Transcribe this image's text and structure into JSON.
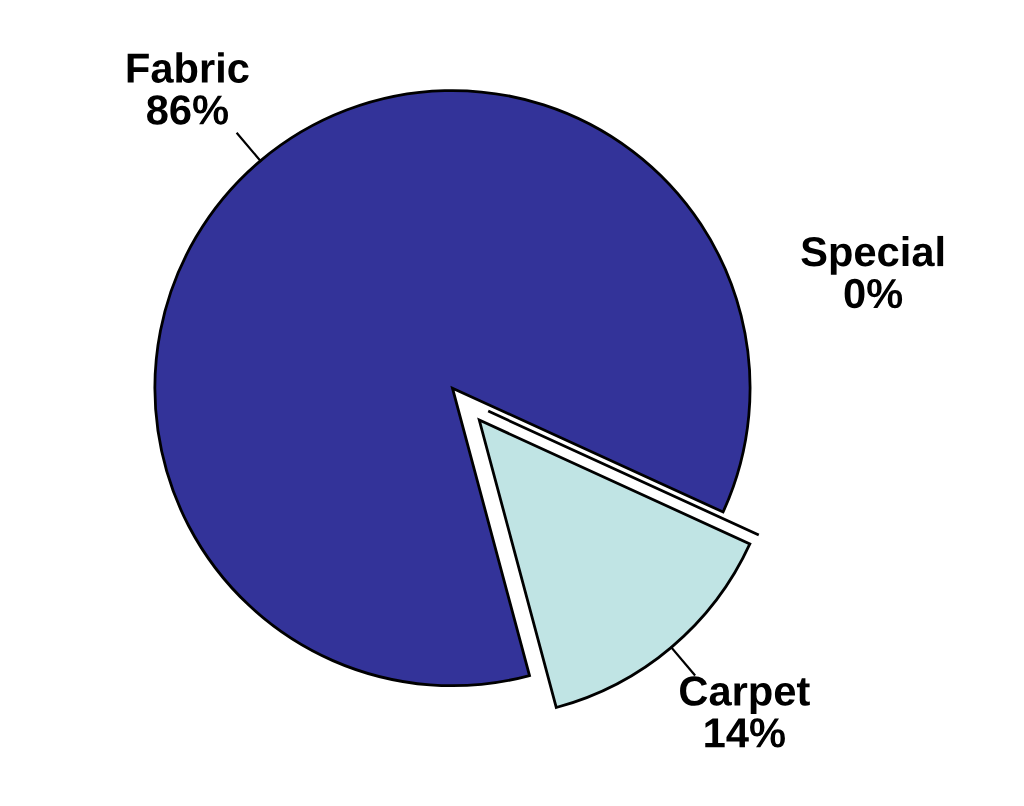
{
  "chart_data": {
    "type": "pie",
    "categories": [
      "Fabric",
      "Special",
      "Carpet"
    ],
    "values": [
      86,
      0,
      14
    ],
    "colors": [
      "#333399",
      "#ffffff",
      "#c0e4e4"
    ],
    "value_labels": [
      "86%",
      "0%",
      "14%"
    ],
    "legend": false
  }
}
